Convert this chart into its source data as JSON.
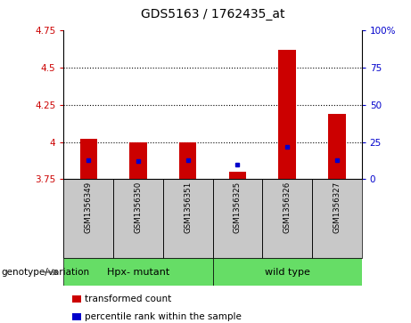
{
  "title": "GDS5163 / 1762435_at",
  "samples": [
    "GSM1356349",
    "GSM1356350",
    "GSM1356351",
    "GSM1356325",
    "GSM1356326",
    "GSM1356327"
  ],
  "transformed_counts": [
    4.02,
    4.0,
    4.0,
    3.8,
    4.62,
    4.19
  ],
  "percentile_ranks": [
    13,
    12,
    13,
    10,
    22,
    13
  ],
  "ylim_left": [
    3.75,
    4.75
  ],
  "ylim_right": [
    0,
    100
  ],
  "yticks_left": [
    3.75,
    4.0,
    4.25,
    4.5,
    4.75
  ],
  "ytick_labels_left": [
    "3.75",
    "4",
    "4.25",
    "4.5",
    "4.75"
  ],
  "yticks_right": [
    0,
    25,
    50,
    75,
    100
  ],
  "ytick_labels_right": [
    "0",
    "25",
    "50",
    "75",
    "100%"
  ],
  "bar_color": "#cc0000",
  "dot_color": "#0000cc",
  "bar_bottom": 3.75,
  "bar_width": 0.35,
  "genotype_label": "genotype/variation",
  "group_label_1": "Hpx- mutant",
  "group_label_2": "wild type",
  "group_color": "#66dd66",
  "sample_box_color": "#c8c8c8",
  "legend_items": [
    {
      "label": "transformed count",
      "color": "#cc0000"
    },
    {
      "label": "percentile rank within the sample",
      "color": "#0000cc"
    }
  ]
}
